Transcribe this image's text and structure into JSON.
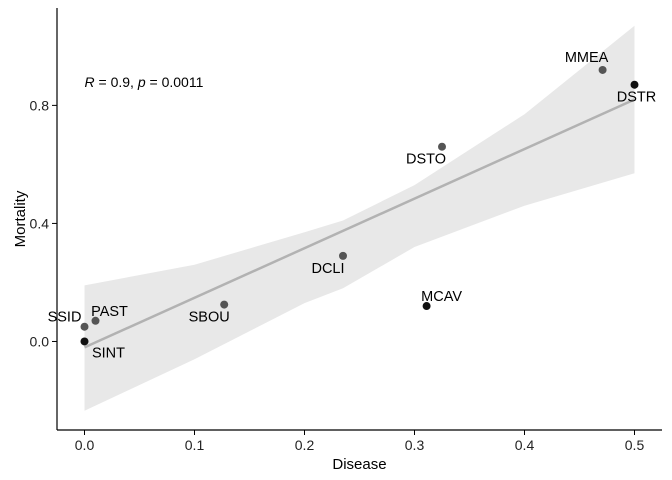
{
  "chart_data": {
    "type": "scatter",
    "xlabel": "Disease",
    "ylabel": "Mortality",
    "xlim": [
      -0.025,
      0.525
    ],
    "ylim": [
      -0.3,
      1.13
    ],
    "xticks": [
      0.0,
      0.1,
      0.2,
      0.3,
      0.4,
      0.5
    ],
    "xtick_labels": [
      "0.0",
      "0.1",
      "0.2",
      "0.3",
      "0.4",
      "0.5"
    ],
    "yticks": [
      0.0,
      0.4,
      0.8
    ],
    "ytick_labels": [
      "0.0",
      "0.4",
      "0.8"
    ],
    "grid": false,
    "annotation": {
      "r_label": "R",
      "r_value": " = 0.9, ",
      "p_label": "p",
      "p_value": " = 0.0011",
      "x": 0.0,
      "y": 0.88
    },
    "points": [
      {
        "label": "SSID",
        "x": 0.0,
        "y": 0.05
      },
      {
        "label": "SINT",
        "x": 0.0,
        "y": 0.0
      },
      {
        "label": "PAST",
        "x": 0.01,
        "y": 0.07
      },
      {
        "label": "SBOU",
        "x": 0.127,
        "y": 0.125
      },
      {
        "label": "DCLI",
        "x": 0.235,
        "y": 0.29
      },
      {
        "label": "DSTO",
        "x": 0.325,
        "y": 0.66
      },
      {
        "label": "MCAV",
        "x": 0.311,
        "y": 0.12
      },
      {
        "label": "MMEA",
        "x": 0.471,
        "y": 0.92
      },
      {
        "label": "DSTR",
        "x": 0.5,
        "y": 0.87
      }
    ],
    "regression": {
      "x_start": 0.0,
      "y_start": -0.02,
      "x_end": 0.5,
      "y_end": 0.82
    },
    "confidence_band": {
      "x": [
        0.0,
        0.1,
        0.2,
        0.235,
        0.3,
        0.4,
        0.5
      ],
      "upper": [
        0.19,
        0.26,
        0.37,
        0.41,
        0.53,
        0.77,
        1.07
      ],
      "lower": [
        -0.235,
        -0.06,
        0.13,
        0.18,
        0.32,
        0.46,
        0.57
      ]
    },
    "colors": {
      "point_dark": "#111111",
      "point_grey": "#555555",
      "line": "#b2b2b2",
      "band": "#e8e8e8",
      "axis": "#000000"
    }
  }
}
